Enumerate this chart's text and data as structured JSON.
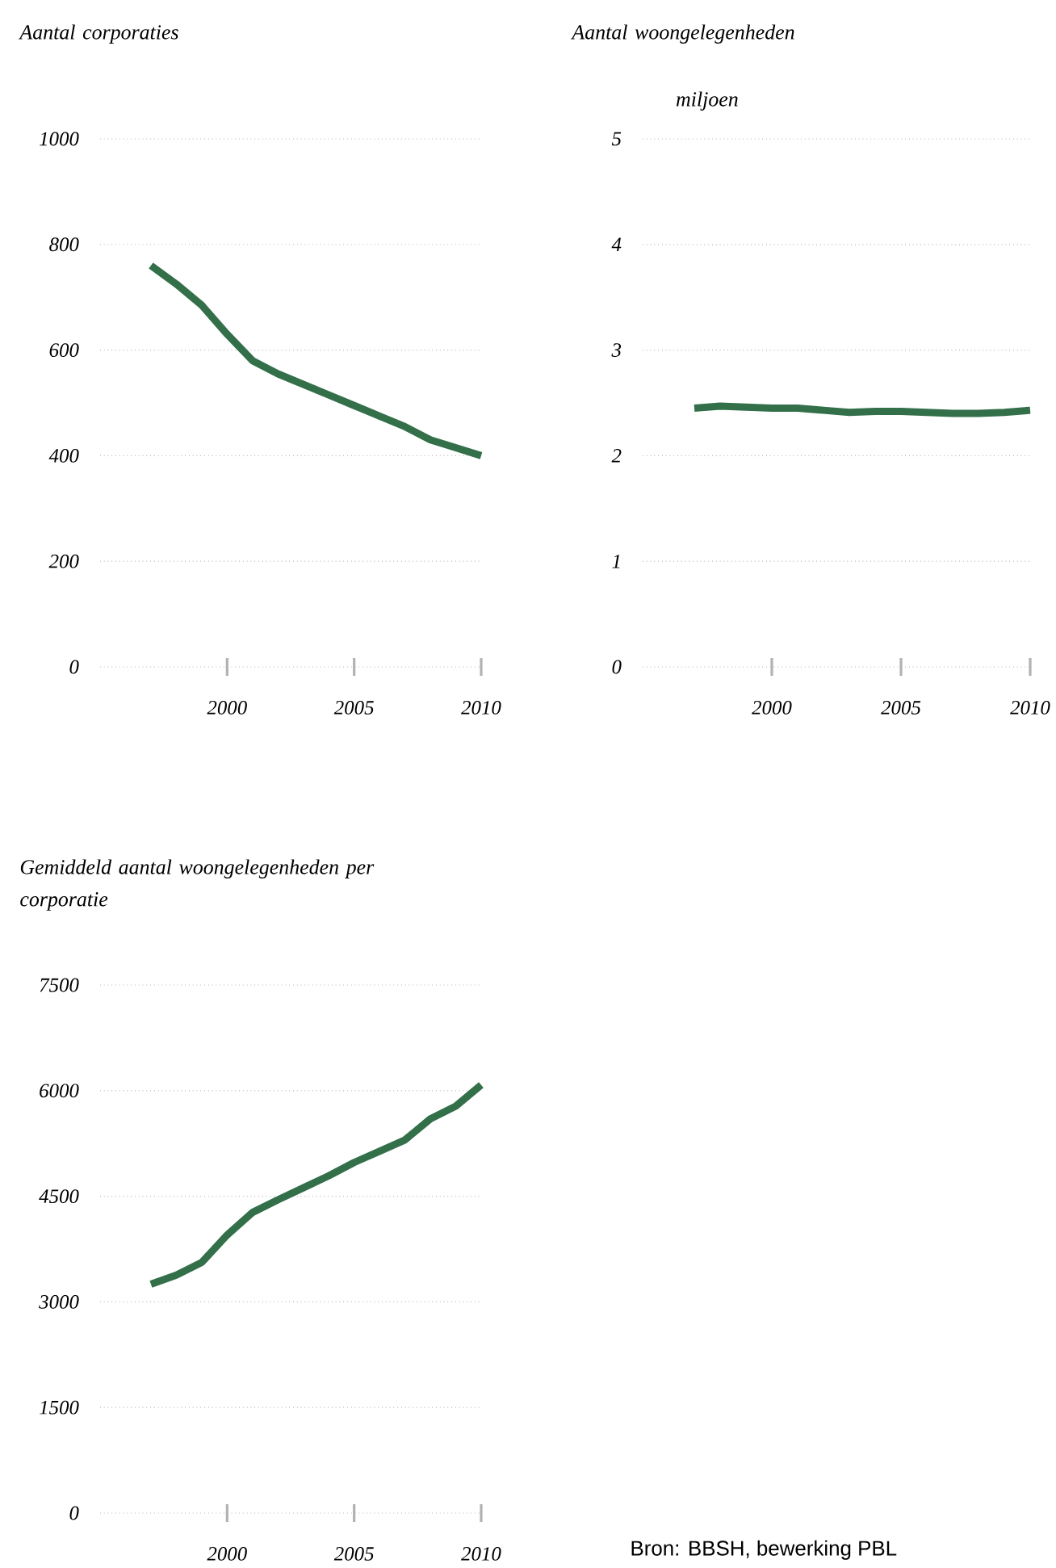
{
  "chart_data": [
    {
      "type": "line",
      "title": "Aantal corporaties",
      "x": [
        1997,
        1998,
        1999,
        2000,
        2001,
        2002,
        2003,
        2004,
        2005,
        2006,
        2007,
        2008,
        2009,
        2010
      ],
      "series": [
        {
          "color": "#33704a",
          "values": [
            760,
            725,
            685,
            630,
            580,
            555,
            535,
            515,
            495,
            475,
            455,
            430,
            415,
            400
          ]
        }
      ],
      "xlim": [
        1995,
        2010
      ],
      "xticks": [
        2000,
        2005,
        2010
      ],
      "ylim": [
        0,
        1000
      ],
      "yticks": [
        0,
        200,
        400,
        600,
        800,
        1000
      ],
      "grid": "y",
      "line_style": "solid"
    },
    {
      "type": "line",
      "title": "Aantal woongelegenheden",
      "ylabel": "miljoen",
      "x": [
        1997,
        1998,
        1999,
        2000,
        2001,
        2002,
        2003,
        2004,
        2005,
        2006,
        2007,
        2008,
        2009,
        2010
      ],
      "series": [
        {
          "color": "#33704a",
          "values": [
            2.45,
            2.47,
            2.46,
            2.45,
            2.45,
            2.43,
            2.41,
            2.42,
            2.42,
            2.41,
            2.4,
            2.4,
            2.41,
            2.43
          ]
        }
      ],
      "xlim": [
        1995,
        2010
      ],
      "xticks": [
        2000,
        2005,
        2010
      ],
      "ylim": [
        0,
        5
      ],
      "yticks": [
        0,
        1,
        2,
        3,
        4,
        5
      ],
      "grid": "y",
      "line_style": "solid"
    },
    {
      "type": "line",
      "title": "Gemiddeld aantal woongelegenheden per corporatie",
      "x": [
        1997,
        1998,
        1999,
        2000,
        2001,
        2002,
        2003,
        2004,
        2005,
        2006,
        2007,
        2008,
        2009,
        2010
      ],
      "series": [
        {
          "color": "#33704a",
          "values": [
            3250,
            3380,
            3560,
            3950,
            4270,
            4450,
            4620,
            4790,
            4980,
            5140,
            5300,
            5600,
            5780,
            6080
          ]
        }
      ],
      "xlim": [
        1995,
        2010
      ],
      "xticks": [
        2000,
        2005,
        2010
      ],
      "ylim": [
        0,
        7500
      ],
      "yticks": [
        0,
        1500,
        3000,
        4500,
        6000,
        7500
      ],
      "grid": "y",
      "line_style": "solid",
      "annotations": [
        "Bron: BBSH, bewerking PBL"
      ]
    }
  ]
}
